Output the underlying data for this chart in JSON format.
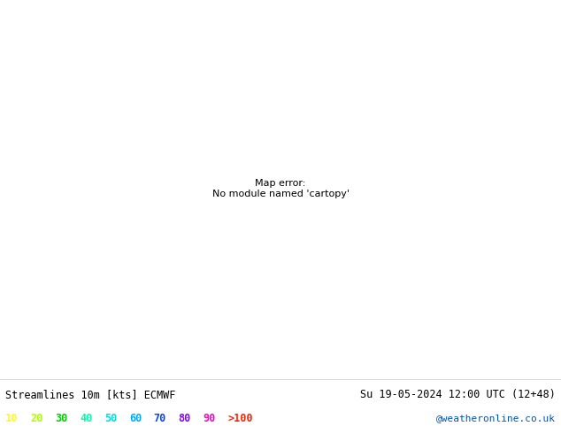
{
  "title_left": "Streamlines 10m [kts] ECMWF",
  "title_right": "Su 19-05-2024 12:00 UTC (12+48)",
  "legend_values": [
    "10",
    "20",
    "30",
    "40",
    "50",
    "60",
    "70",
    "80",
    "90",
    ">100"
  ],
  "legend_colors": [
    "#ffff00",
    "#aaff00",
    "#00cc00",
    "#00ffaa",
    "#00dddd",
    "#00aaff",
    "#0044ff",
    "#8800ff",
    "#ff00cc",
    "#ff2200"
  ],
  "credit": "@weatheronline.co.uk",
  "bg_color": "#ffffff",
  "ocean_color": "#e8f2f8",
  "land_color": "#f5f5ee",
  "figsize": [
    6.34,
    4.9
  ],
  "dpi": 100,
  "lon_min": -92,
  "lon_max": -28,
  "lat_min": -58,
  "lat_max": 15
}
